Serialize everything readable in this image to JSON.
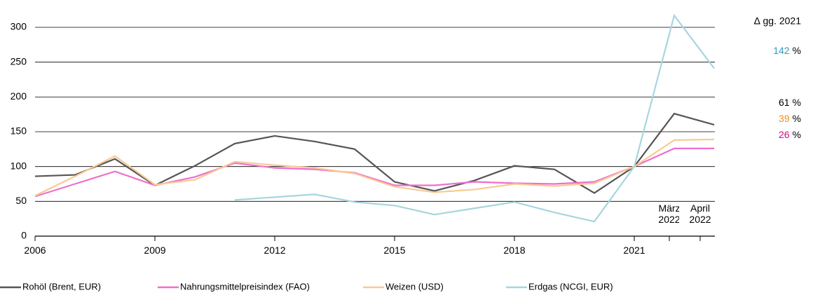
{
  "chart_data": {
    "type": "line",
    "categories": [
      "2006",
      null,
      null,
      "2009",
      null,
      null,
      "2012",
      null,
      null,
      "2015",
      null,
      null,
      "2018",
      null,
      null,
      "2021",
      "März 2022",
      "April 2022"
    ],
    "series": [
      {
        "name": "Rohöl (Brent, EUR)",
        "color": "#555555",
        "values": [
          86,
          88,
          111,
          73,
          101,
          133,
          144,
          136,
          125,
          78,
          65,
          80,
          101,
          96,
          62,
          100,
          176,
          160
        ]
      },
      {
        "name": "Nahrungsmittelpreisindex (FAO)",
        "color": "#ee6fcc",
        "values": [
          57,
          75,
          93,
          73,
          85,
          105,
          98,
          96,
          91,
          73,
          73,
          78,
          76,
          75,
          78,
          100,
          126,
          126
        ]
      },
      {
        "name": "Weizen (USD)",
        "color": "#f9c993",
        "values": [
          58,
          86,
          115,
          74,
          81,
          107,
          102,
          98,
          90,
          71,
          63,
          67,
          75,
          72,
          76,
          100,
          138,
          139
        ]
      },
      {
        "name": "Erdgas (NCGI, EUR)",
        "color": "#a6d6df",
        "values": [
          null,
          null,
          null,
          null,
          null,
          52,
          56,
          60,
          49,
          44,
          31,
          40,
          49,
          34,
          21,
          100,
          317,
          241
        ]
      }
    ],
    "ylim": [
      0,
      320
    ],
    "yticks": [
      0,
      50,
      100,
      150,
      200,
      250,
      300
    ],
    "grid": true,
    "annotation_title": "∆ gg. 2021",
    "annotations": [
      {
        "label": "142",
        "unit": "%",
        "color": "#2f9ac0"
      },
      {
        "label": "61",
        "unit": "%",
        "color": "#000000"
      },
      {
        "label": "39",
        "unit": "%",
        "color": "#f0901e"
      },
      {
        "label": "26",
        "unit": "%",
        "color": "#cc0a84"
      }
    ]
  }
}
